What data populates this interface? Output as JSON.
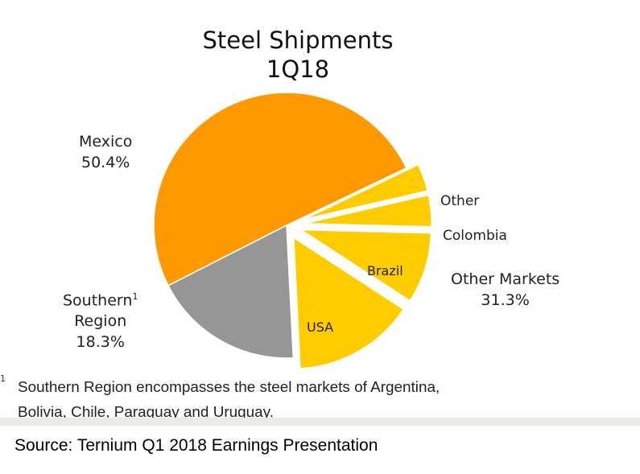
{
  "chart_data": {
    "type": "pie",
    "title": "Steel Shipments",
    "subtitle": "1Q18",
    "slices": [
      {
        "name": "Mexico",
        "value": 50.4,
        "label": "50.4%",
        "color": "#FF9900"
      },
      {
        "name": "Other",
        "value": 3.5,
        "color": "#FFCC00",
        "group": "Other Markets"
      },
      {
        "name": "Colombia",
        "value": 4.0,
        "color": "#FFCC00",
        "group": "Other Markets"
      },
      {
        "name": "Brazil",
        "value": 8.8,
        "color": "#FFCC00",
        "group": "Other Markets"
      },
      {
        "name": "USA",
        "value": 15.0,
        "color": "#FFCC00",
        "group": "Other Markets"
      },
      {
        "name": "Southern Region",
        "value": 18.3,
        "label": "18.3%",
        "color": "#969696"
      }
    ],
    "group_label": {
      "name": "Other Markets",
      "value": 31.3,
      "label": "31.3%"
    }
  },
  "labels": {
    "mexico": "Mexico",
    "mexico_pct": "50.4%",
    "southern1": "Southern",
    "southern_sup": "1",
    "southern2": "Region",
    "southern_pct": "18.3%",
    "other": "Other",
    "colombia": "Colombia",
    "brazil": "Brazil",
    "usa": "USA",
    "other_markets": "Other Markets",
    "other_markets_pct": "31.3%"
  },
  "footnote": {
    "mark": "1",
    "line1": "Southern Region encompasses the steel markets of Argentina,",
    "line2": "Bolivia, Chile, Paraguay and Uruguay."
  },
  "source": "Source: Ternium Q1 2018 Earnings Presentation"
}
